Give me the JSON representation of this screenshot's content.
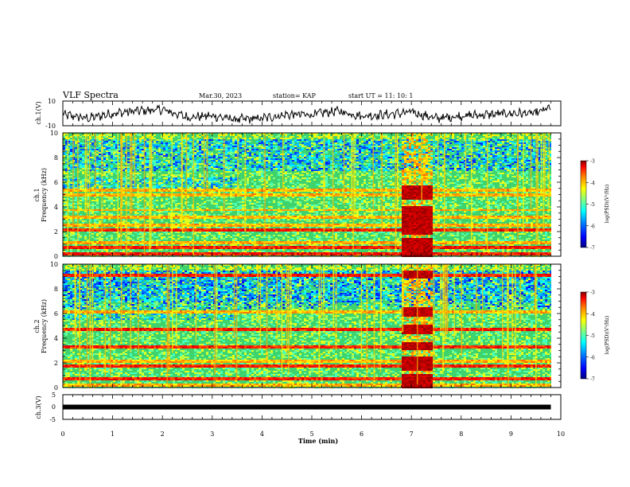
{
  "header": {
    "title": "VLF Spectra",
    "date": "Mar.30, 2023",
    "station": "station= KAP",
    "start": "start  UT  =    11: 10: 1"
  },
  "chart_data": [
    {
      "type": "line",
      "panel": "ch1-waveform",
      "ylabel": "ch.1(V)",
      "ylim": [
        -10,
        10
      ],
      "yticklabels": [
        "10",
        "-10"
      ],
      "x": [
        0,
        0.5,
        1,
        1.5,
        2,
        2.5,
        3,
        3.5,
        4,
        4.5,
        5,
        5.5,
        6,
        6.5,
        7,
        7.5,
        8,
        8.5,
        9,
        9.5,
        9.8
      ],
      "series": [
        {
          "values": [
            -1,
            -4,
            0,
            2,
            3,
            -3,
            -2,
            -5,
            -4,
            -1,
            -1,
            2,
            -2,
            -1,
            1,
            -4,
            -2,
            -1,
            0,
            0,
            5
          ]
        }
      ]
    },
    {
      "type": "heatmap",
      "panel": "ch1-spectrogram",
      "title": "ch.1",
      "ylabel": "Frequency (kHz)",
      "ylim": [
        0,
        10
      ],
      "yticks": [
        "0",
        "2",
        "4",
        "6",
        "8",
        "10"
      ],
      "colorbar": {
        "label": "log(PSD)(V²/Hz)",
        "range": [
          -7,
          -3
        ],
        "ticks": [
          "-3",
          "-4",
          "-5",
          "-6",
          "-7"
        ]
      },
      "emission_bands": [
        {
          "freq_khz": 0.3,
          "level": "high"
        },
        {
          "freq_khz": 0.8,
          "level": "high"
        },
        {
          "freq_khz": 1.2,
          "level": "medium"
        },
        {
          "freq_khz": 2.2,
          "level": "high"
        },
        {
          "freq_khz": 2.6,
          "level": "medium"
        },
        {
          "freq_khz": 3.2,
          "level": "medium"
        },
        {
          "freq_khz": 3.8,
          "level": "medium"
        },
        {
          "freq_khz": 5.0,
          "level": "medium"
        },
        {
          "freq_khz": 5.4,
          "level": "medium"
        }
      ],
      "intense_interval_min": [
        6.8,
        7.4
      ]
    },
    {
      "type": "heatmap",
      "panel": "ch2-spectrogram",
      "title": "ch.2",
      "ylabel": "Frequency (kHz)",
      "ylim": [
        0,
        10
      ],
      "yticks": [
        "0",
        "2",
        "4",
        "6",
        "8",
        "10"
      ],
      "colorbar": {
        "label": "log(PSD)(V²/Hz)",
        "range": [
          -7,
          -3
        ],
        "ticks": [
          "-3",
          "-4",
          "-5",
          "-6",
          "-7"
        ]
      },
      "emission_bands": [
        {
          "freq_khz": 0.3,
          "level": "medium"
        },
        {
          "freq_khz": 0.8,
          "level": "high"
        },
        {
          "freq_khz": 1.8,
          "level": "high"
        },
        {
          "freq_khz": 2.2,
          "level": "medium"
        },
        {
          "freq_khz": 3.4,
          "level": "high"
        },
        {
          "freq_khz": 4.8,
          "level": "high"
        },
        {
          "freq_khz": 6.2,
          "level": "medium"
        },
        {
          "freq_khz": 9.2,
          "level": "high"
        }
      ],
      "intense_interval_min": [
        6.8,
        7.4
      ]
    },
    {
      "type": "line",
      "panel": "ch3-level",
      "ylabel": "ch.3(V)",
      "ylim": [
        -5,
        5
      ],
      "yticklabels": [
        "5",
        "0",
        "-5"
      ],
      "x": [
        0,
        9.8
      ],
      "series": [
        {
          "values": [
            0,
            0
          ]
        }
      ]
    }
  ],
  "xaxis": {
    "label": "Time  (min)",
    "range": [
      0,
      10
    ],
    "ticks": [
      "0",
      "1",
      "2",
      "3",
      "4",
      "5",
      "6",
      "7",
      "8",
      "9",
      "10"
    ]
  },
  "colors": {
    "colormap": [
      "#00007f",
      "#0000ff",
      "#0080ff",
      "#00ffff",
      "#80ff80",
      "#ffff00",
      "#ff8000",
      "#ff0000",
      "#800000"
    ],
    "spectrogram_background": "#3fd36e"
  }
}
